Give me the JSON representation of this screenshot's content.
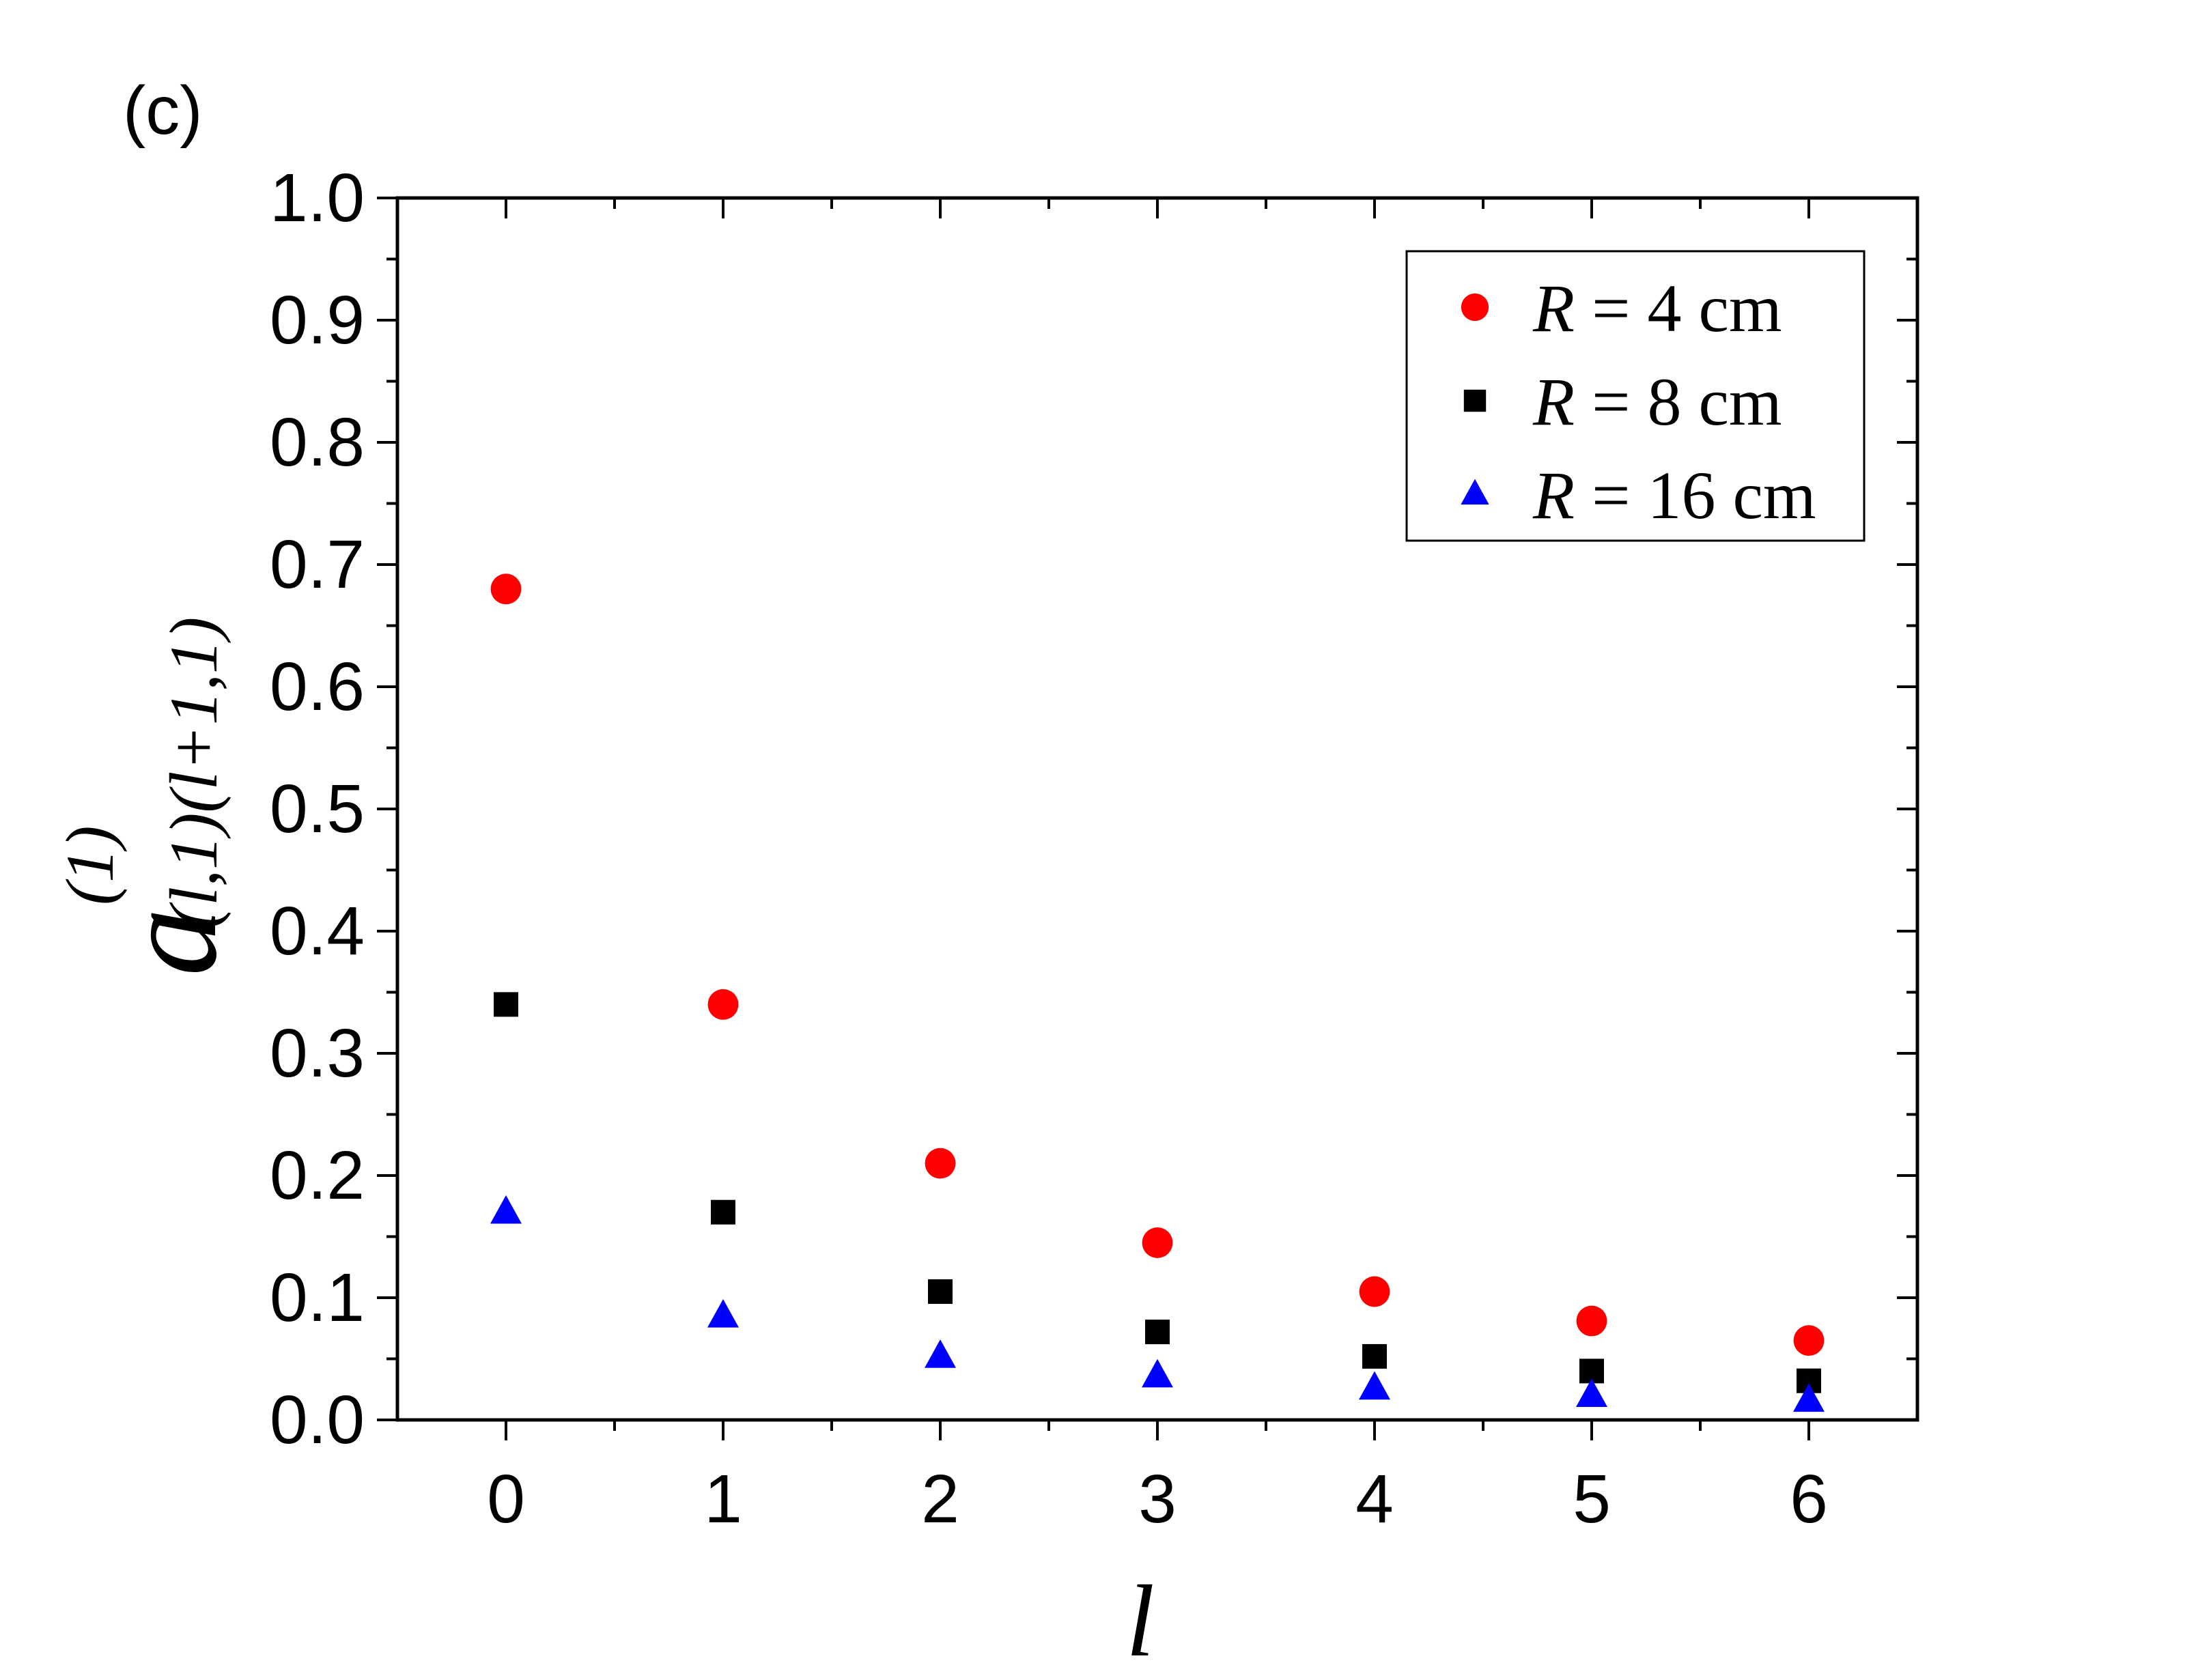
{
  "chart_data": {
    "type": "scatter",
    "panel_label": "(c)",
    "xlabel": "l",
    "ylabel": {
      "base": "a",
      "superscript": "(1)",
      "subscript": "(l,1)(l+1,1)"
    },
    "xlim": [
      -0.5,
      6.5
    ],
    "ylim": [
      0.0,
      1.0
    ],
    "x_ticks": [
      0,
      1,
      2,
      3,
      4,
      5,
      6
    ],
    "x_tick_labels": [
      "0",
      "1",
      "2",
      "3",
      "4",
      "5",
      "6"
    ],
    "y_ticks": [
      0.0,
      0.1,
      0.2,
      0.3,
      0.4,
      0.5,
      0.6,
      0.7,
      0.8,
      0.9,
      1.0
    ],
    "y_tick_labels": [
      "0.0",
      "0.1",
      "0.2",
      "0.3",
      "0.4",
      "0.5",
      "0.6",
      "0.7",
      "0.8",
      "0.9",
      "1.0"
    ],
    "grid": false,
    "legend_position": "top-right",
    "x": [
      0,
      1,
      2,
      3,
      4,
      5,
      6
    ],
    "series": [
      {
        "legend_var": "R",
        "legend_rest": " = 4 cm",
        "marker": "circle",
        "color": "#ff0000",
        "values": [
          0.68,
          0.34,
          0.21,
          0.145,
          0.105,
          0.081,
          0.065
        ]
      },
      {
        "legend_var": "R",
        "legend_rest": " = 8 cm",
        "marker": "square",
        "color": "#000000",
        "values": [
          0.34,
          0.17,
          0.105,
          0.072,
          0.052,
          0.04,
          0.032
        ]
      },
      {
        "legend_var": "R",
        "legend_rest": " = 16 cm",
        "marker": "triangle",
        "color": "#0000ff",
        "values": [
          0.17,
          0.085,
          0.052,
          0.036,
          0.026,
          0.02,
          0.016
        ]
      }
    ]
  }
}
